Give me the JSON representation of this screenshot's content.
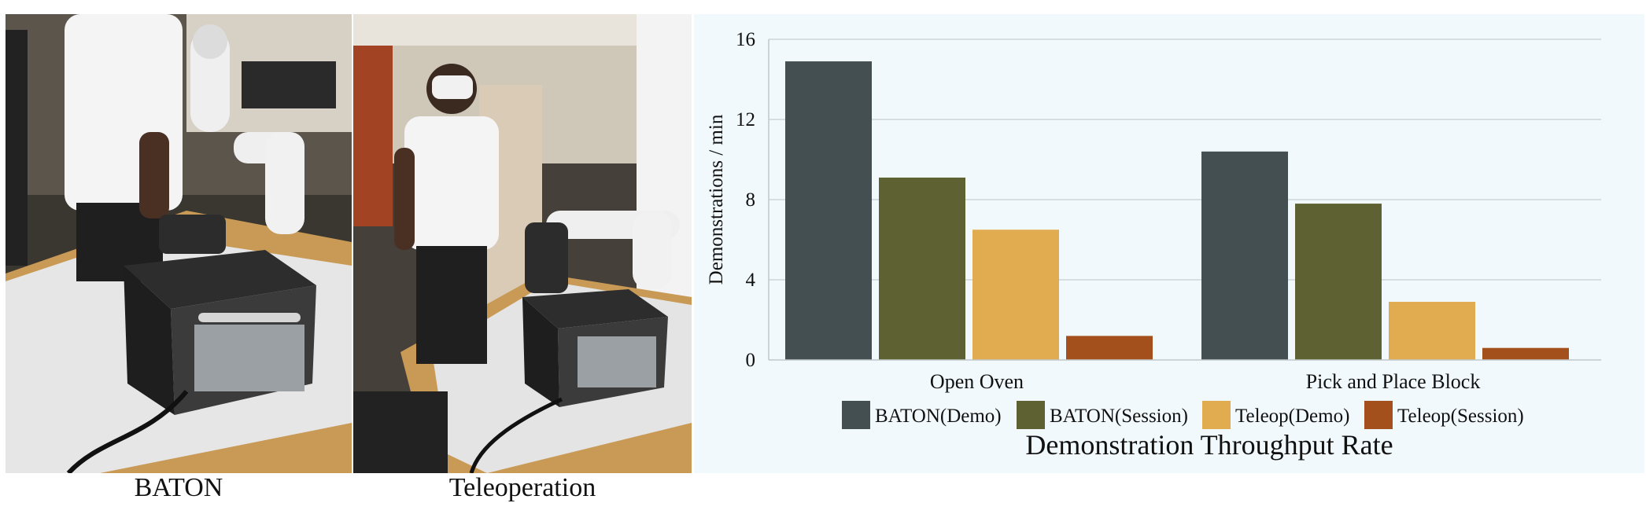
{
  "photos": {
    "baton_caption": "BATON",
    "teleop_caption": "Teleoperation"
  },
  "colors": {
    "baton_demo": "#444f52",
    "baton_session": "#5e6233",
    "teleop_demo": "#e1ab4f",
    "teleop_session": "#a4501c",
    "grid": "#c7cfd2",
    "background": "#f1f9fc"
  },
  "chart_data": {
    "type": "bar",
    "title": "Demonstration Throughput Rate",
    "xlabel": "",
    "ylabel": "Demonstrations / min",
    "categories": [
      "Open Oven",
      "Pick and Place Block"
    ],
    "series": [
      {
        "name": "BATON(Demo)",
        "values": [
          14.9,
          10.4
        ]
      },
      {
        "name": "BATON(Session)",
        "values": [
          9.1,
          7.8
        ]
      },
      {
        "name": "Teleop(Demo)",
        "values": [
          6.5,
          2.9
        ]
      },
      {
        "name": "Teleop(Session)",
        "values": [
          1.2,
          0.6
        ]
      }
    ],
    "ylim": [
      0,
      16
    ],
    "yticks": [
      0,
      4,
      8,
      12,
      16
    ],
    "grid": true,
    "legend": "bottom"
  }
}
